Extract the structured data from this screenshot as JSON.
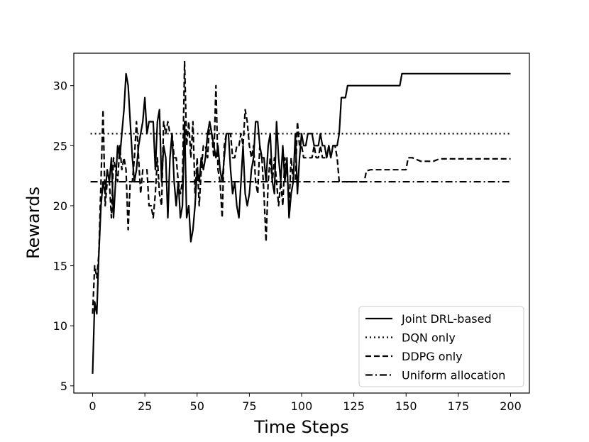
{
  "chart_data": {
    "type": "line",
    "title": "",
    "xlabel": "Time Steps",
    "ylabel": "Rewards",
    "xlim": [
      -9,
      209
    ],
    "ylim": [
      4.4,
      32.7
    ],
    "xticks": [
      0,
      25,
      50,
      75,
      100,
      125,
      150,
      175,
      200
    ],
    "yticks": [
      5,
      10,
      15,
      20,
      25,
      30
    ],
    "grid": false,
    "legend_position": "bottom-right",
    "series": [
      {
        "name": "Joint DRL-based",
        "style": "solid",
        "color": "#000000",
        "points": [
          [
            0,
            6
          ],
          [
            1,
            12
          ],
          [
            2,
            11
          ],
          [
            3,
            16
          ],
          [
            4,
            20
          ],
          [
            5,
            22
          ],
          [
            6,
            21
          ],
          [
            7,
            23
          ],
          [
            8,
            22
          ],
          [
            9,
            24
          ],
          [
            10,
            19
          ],
          [
            11,
            22
          ],
          [
            12,
            25
          ],
          [
            13,
            24
          ],
          [
            14,
            26
          ],
          [
            15,
            28
          ],
          [
            16,
            31
          ],
          [
            17,
            30
          ],
          [
            18,
            27
          ],
          [
            19,
            24
          ],
          [
            20,
            22
          ],
          [
            21,
            23
          ],
          [
            22,
            25
          ],
          [
            23,
            26
          ],
          [
            24,
            27
          ],
          [
            25,
            29
          ],
          [
            26,
            26
          ],
          [
            27,
            27
          ],
          [
            28,
            27
          ],
          [
            29,
            27
          ],
          [
            30,
            23
          ],
          [
            31,
            27
          ],
          [
            32,
            28
          ],
          [
            33,
            22
          ],
          [
            34,
            25
          ],
          [
            35,
            24
          ],
          [
            36,
            19
          ],
          [
            37,
            24
          ],
          [
            38,
            26
          ],
          [
            39,
            22
          ],
          [
            40,
            20
          ],
          [
            41,
            22
          ],
          [
            42,
            19
          ],
          [
            43,
            20
          ],
          [
            44,
            27
          ],
          [
            45,
            19
          ],
          [
            46,
            20
          ],
          [
            47,
            17
          ],
          [
            48,
            18
          ],
          [
            49,
            20
          ],
          [
            50,
            23
          ],
          [
            51,
            22
          ],
          [
            52,
            24
          ],
          [
            53,
            23
          ],
          [
            54,
            24
          ],
          [
            55,
            26
          ],
          [
            56,
            27
          ],
          [
            57,
            26
          ],
          [
            58,
            25
          ],
          [
            59,
            24
          ],
          [
            60,
            25
          ],
          [
            61,
            23
          ],
          [
            62,
            22
          ],
          [
            63,
            24
          ],
          [
            64,
            26
          ],
          [
            65,
            26
          ],
          [
            66,
            23
          ],
          [
            67,
            21
          ],
          [
            68,
            22
          ],
          [
            69,
            20
          ],
          [
            70,
            19
          ],
          [
            71,
            22
          ],
          [
            72,
            25
          ],
          [
            73,
            21
          ],
          [
            74,
            20
          ],
          [
            75,
            21
          ],
          [
            76,
            23
          ],
          [
            77,
            24
          ],
          [
            78,
            27
          ],
          [
            79,
            27
          ],
          [
            80,
            25
          ],
          [
            81,
            24
          ],
          [
            82,
            24
          ],
          [
            83,
            22
          ],
          [
            84,
            25
          ],
          [
            85,
            26
          ],
          [
            86,
            22
          ],
          [
            87,
            21
          ],
          [
            88,
            27
          ],
          [
            89,
            24
          ],
          [
            90,
            22
          ],
          [
            91,
            25
          ],
          [
            92,
            22
          ],
          [
            93,
            24
          ],
          [
            94,
            19
          ],
          [
            95,
            21
          ],
          [
            96,
            22
          ],
          [
            97,
            26
          ],
          [
            98,
            21
          ],
          [
            99,
            24
          ],
          [
            100,
            26
          ],
          [
            101,
            25
          ],
          [
            102,
            25
          ],
          [
            103,
            26
          ],
          [
            104,
            26
          ],
          [
            105,
            26
          ],
          [
            106,
            25
          ],
          [
            107,
            25
          ],
          [
            108,
            25
          ],
          [
            109,
            26
          ],
          [
            110,
            25
          ],
          [
            111,
            25
          ],
          [
            112,
            24
          ],
          [
            113,
            25
          ],
          [
            114,
            24
          ],
          [
            115,
            25
          ],
          [
            116,
            25
          ],
          [
            117,
            25
          ],
          [
            118,
            26
          ],
          [
            119,
            29
          ],
          [
            120,
            29
          ],
          [
            121,
            29
          ],
          [
            122,
            30
          ],
          [
            147,
            30
          ],
          [
            148,
            31
          ],
          [
            200,
            31
          ]
        ]
      },
      {
        "name": "DQN only",
        "style": "dotted",
        "color": "#000000",
        "points": [
          [
            -1,
            26
          ],
          [
            200,
            26
          ]
        ]
      },
      {
        "name": "DDPG only",
        "style": "dashed",
        "color": "#000000",
        "points": [
          [
            0,
            11
          ],
          [
            1,
            15
          ],
          [
            2,
            14
          ],
          [
            3,
            16
          ],
          [
            4,
            22
          ],
          [
            5,
            28
          ],
          [
            6,
            20
          ],
          [
            7,
            22
          ],
          [
            8,
            22
          ],
          [
            9,
            19
          ],
          [
            10,
            24
          ],
          [
            11,
            23
          ],
          [
            12,
            22
          ],
          [
            13,
            25
          ],
          [
            14,
            23
          ],
          [
            15,
            24
          ],
          [
            16,
            23
          ],
          [
            17,
            18
          ],
          [
            18,
            22
          ],
          [
            19,
            22
          ],
          [
            20,
            24
          ],
          [
            21,
            27
          ],
          [
            22,
            24
          ],
          [
            23,
            21
          ],
          [
            24,
            23
          ],
          [
            25,
            23
          ],
          [
            26,
            23
          ],
          [
            27,
            20
          ],
          [
            28,
            20
          ],
          [
            29,
            19
          ],
          [
            30,
            21
          ],
          [
            31,
            24
          ],
          [
            32,
            21
          ],
          [
            33,
            20
          ],
          [
            34,
            27
          ],
          [
            35,
            26
          ],
          [
            36,
            27
          ],
          [
            37,
            26
          ],
          [
            38,
            26
          ],
          [
            39,
            24
          ],
          [
            40,
            24
          ],
          [
            41,
            22
          ],
          [
            42,
            21
          ],
          [
            43,
            22
          ],
          [
            44,
            32
          ],
          [
            45,
            25
          ],
          [
            46,
            27
          ],
          [
            47,
            24
          ],
          [
            48,
            27
          ],
          [
            49,
            21
          ],
          [
            50,
            24
          ],
          [
            51,
            20
          ],
          [
            52,
            23
          ],
          [
            53,
            25
          ],
          [
            54,
            25
          ],
          [
            55,
            24
          ],
          [
            56,
            27
          ],
          [
            57,
            26
          ],
          [
            58,
            24
          ],
          [
            59,
            30
          ],
          [
            60,
            23
          ],
          [
            61,
            22
          ],
          [
            62,
            19
          ],
          [
            63,
            25
          ],
          [
            64,
            26
          ],
          [
            65,
            26
          ],
          [
            66,
            26
          ],
          [
            67,
            24
          ],
          [
            68,
            24
          ],
          [
            69,
            25
          ],
          [
            70,
            25
          ],
          [
            71,
            26
          ],
          [
            72,
            25
          ],
          [
            73,
            28
          ],
          [
            74,
            27
          ],
          [
            75,
            25
          ],
          [
            76,
            24
          ],
          [
            77,
            25
          ],
          [
            78,
            22
          ],
          [
            79,
            21
          ],
          [
            80,
            25
          ],
          [
            81,
            24
          ],
          [
            82,
            21
          ],
          [
            83,
            17
          ],
          [
            84,
            22
          ],
          [
            85,
            24
          ],
          [
            86,
            22
          ],
          [
            87,
            24
          ],
          [
            88,
            22
          ],
          [
            89,
            20
          ],
          [
            90,
            22
          ],
          [
            91,
            20
          ],
          [
            92,
            24
          ],
          [
            93,
            23
          ],
          [
            94,
            20
          ],
          [
            95,
            24
          ],
          [
            96,
            22
          ],
          [
            97,
            22
          ],
          [
            98,
            27
          ],
          [
            99,
            25
          ],
          [
            100,
            25
          ],
          [
            101,
            24
          ],
          [
            102,
            24
          ],
          [
            103,
            24
          ],
          [
            104,
            24
          ],
          [
            105,
            24
          ],
          [
            106,
            25
          ],
          [
            107,
            24
          ],
          [
            108,
            24
          ],
          [
            109,
            25
          ],
          [
            110,
            24
          ],
          [
            111,
            24
          ],
          [
            112,
            24
          ],
          [
            113,
            25
          ],
          [
            114,
            24
          ],
          [
            115,
            25
          ],
          [
            116,
            25
          ],
          [
            117,
            24
          ],
          [
            118,
            22
          ],
          [
            119,
            22
          ],
          [
            120,
            22
          ],
          [
            130,
            22
          ],
          [
            131,
            22.9
          ],
          [
            133,
            23
          ],
          [
            143,
            23
          ],
          [
            150,
            23
          ],
          [
            151,
            24
          ],
          [
            153,
            24
          ],
          [
            157,
            23.7
          ],
          [
            163,
            23.7
          ],
          [
            166,
            23.9
          ],
          [
            200,
            23.9
          ]
        ]
      },
      {
        "name": "Uniform allocation",
        "style": "dashdot",
        "color": "#000000",
        "points": [
          [
            -1,
            22
          ],
          [
            200,
            22
          ]
        ]
      }
    ]
  }
}
